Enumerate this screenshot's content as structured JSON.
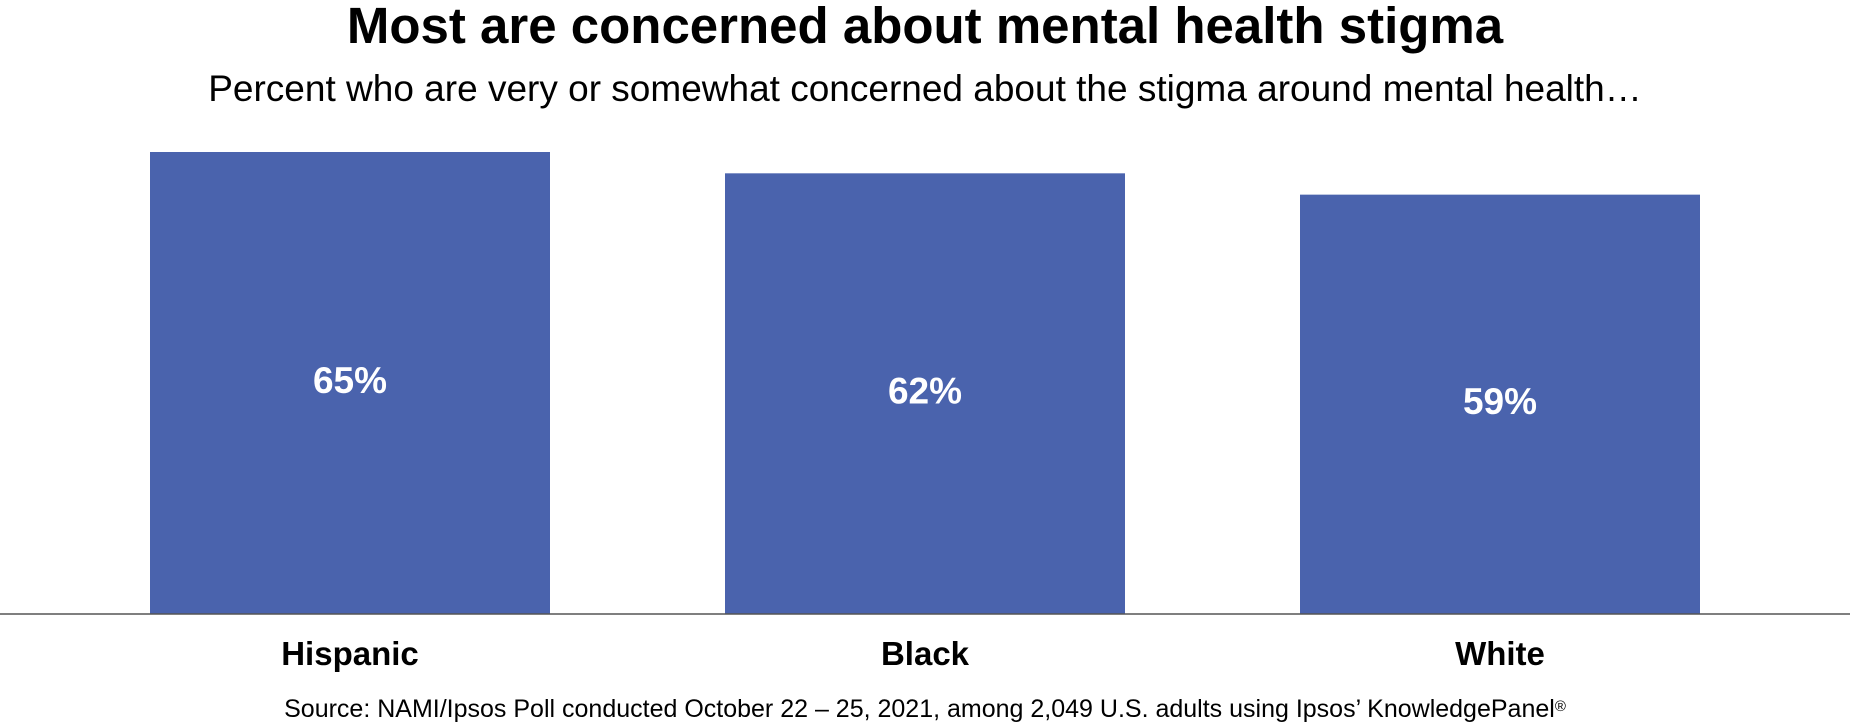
{
  "chart_data": {
    "type": "bar",
    "title": "Most are concerned about mental health stigma",
    "subtitle": "Percent who are very or somewhat concerned about the stigma around mental health…",
    "categories": [
      "Hispanic",
      "Black",
      "White"
    ],
    "values": [
      65,
      62,
      59
    ],
    "value_labels": [
      "65%",
      "62%",
      "59%"
    ],
    "ylim": [
      0,
      65
    ],
    "grid": false,
    "legend": "none",
    "bar_color": "#4a63ad",
    "source": "Source: NAMI/Ipsos Poll conducted October 22 – 25, 2021, among 2,049 U.S. adults using Ipsos’ KnowledgePanel",
    "source_mark": "®"
  }
}
